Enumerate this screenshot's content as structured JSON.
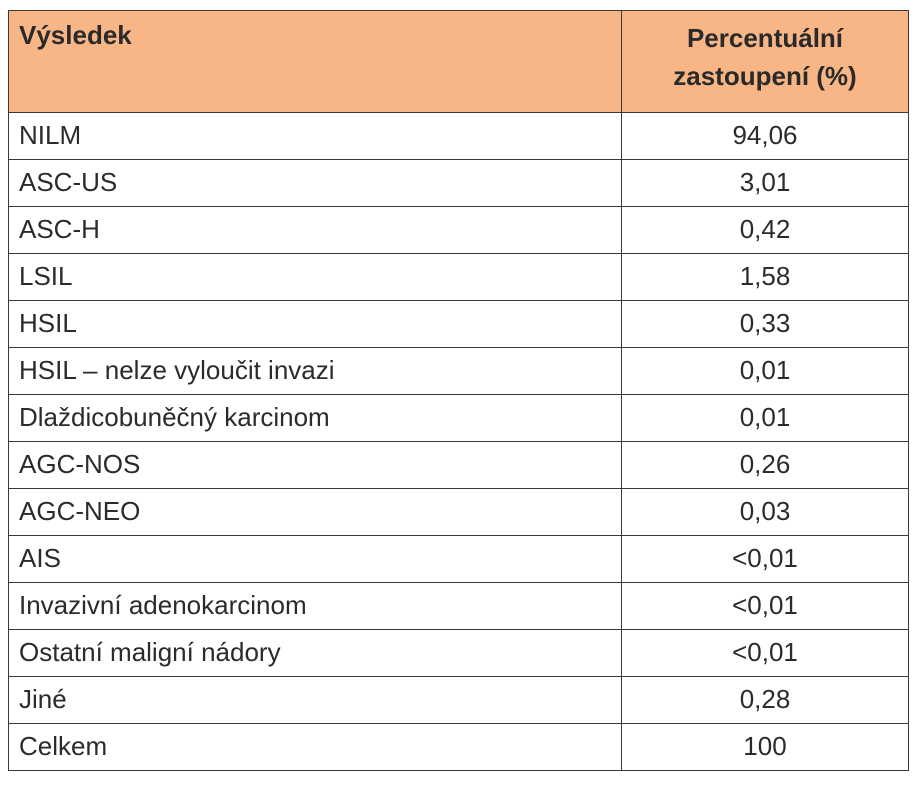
{
  "table": {
    "header": {
      "result": "Výsledek",
      "percent_line1": "Percentuální",
      "percent_line2": "zastoupení (%)"
    },
    "rows": [
      {
        "result": "NILM",
        "percent": "94,06"
      },
      {
        "result": "ASC-US",
        "percent": "3,01"
      },
      {
        "result": "ASC-H",
        "percent": "0,42"
      },
      {
        "result": "LSIL",
        "percent": "1,58"
      },
      {
        "result": "HSIL",
        "percent": "0,33"
      },
      {
        "result": "HSIL – nelze vyloučit invazi",
        "percent": "0,01"
      },
      {
        "result": "Dlaždicobuněčný karcinom",
        "percent": "0,01"
      },
      {
        "result": "AGC-NOS",
        "percent": "0,26"
      },
      {
        "result": "AGC-NEO",
        "percent": "0,03"
      },
      {
        "result": "AIS",
        "percent": "<0,01"
      },
      {
        "result": "Invazivní adenokarcinom",
        "percent": "<0,01"
      },
      {
        "result": "Ostatní maligní nádory",
        "percent": "<0,01"
      },
      {
        "result": "Jiné",
        "percent": "0,28"
      },
      {
        "result": "Celkem",
        "percent": "100"
      }
    ]
  },
  "colors": {
    "header_background": "#f8b585",
    "border": "#3a3a3a",
    "text": "#2b2b2b"
  }
}
